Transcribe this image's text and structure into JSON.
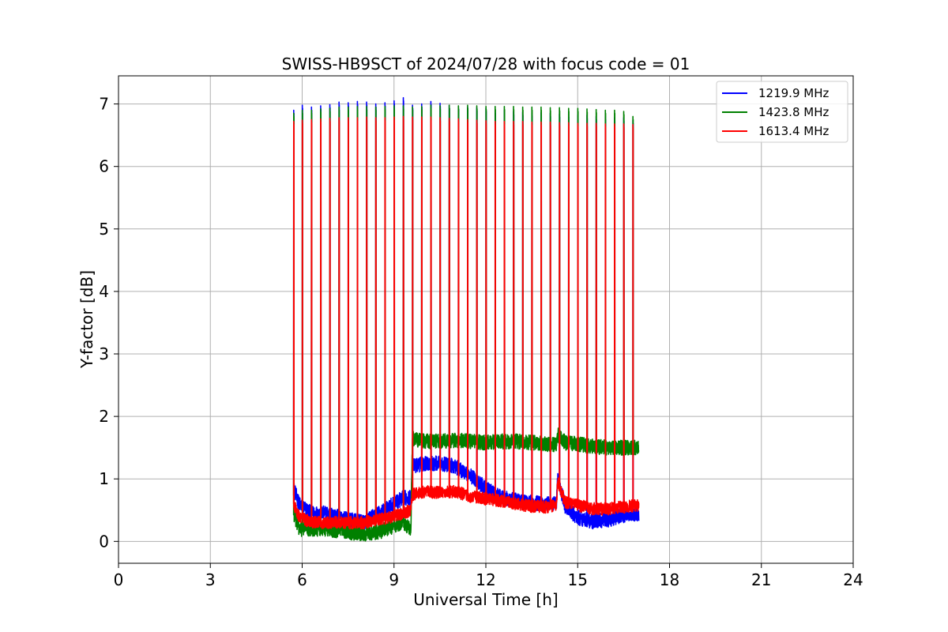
{
  "chart_data": {
    "type": "line",
    "title": "SWISS-HB9SCT of 2024/07/28 with focus code = 01",
    "xlabel": "Universal Time [h]",
    "ylabel": "Y-factor [dB]",
    "xlim": [
      0,
      24
    ],
    "ylim": [
      -0.35,
      7.45
    ],
    "xticks": [
      "0",
      "3",
      "6",
      "9",
      "12",
      "15",
      "18",
      "21",
      "24"
    ],
    "xtick_values": [
      0,
      3,
      6,
      9,
      12,
      15,
      18,
      21,
      24
    ],
    "yticks": [
      "0",
      "1",
      "2",
      "3",
      "4",
      "5",
      "6",
      "7"
    ],
    "ytick_values": [
      0,
      1,
      2,
      3,
      4,
      5,
      6,
      7
    ],
    "grid": true,
    "legend_position": "top-right",
    "calibration_spike_times": [
      5.72,
      6.0,
      6.3,
      6.6,
      6.9,
      7.2,
      7.5,
      7.8,
      8.1,
      8.4,
      8.7,
      9.0,
      9.3,
      9.6,
      9.9,
      10.2,
      10.5,
      10.8,
      11.1,
      11.4,
      11.7,
      12.0,
      12.3,
      12.6,
      12.9,
      13.2,
      13.5,
      13.8,
      14.1,
      14.4,
      14.7,
      15.0,
      15.3,
      15.6,
      15.9,
      16.2,
      16.5,
      16.8
    ],
    "series": [
      {
        "name": "1219.9 MHz",
        "color": "#0000ff",
        "baseline_x": [
          5.72,
          5.9,
          6.3,
          6.8,
          7.5,
          8.0,
          8.5,
          9.0,
          9.3,
          9.55,
          9.6,
          10.0,
          10.5,
          11.0,
          11.5,
          12.0,
          12.5,
          13.0,
          13.5,
          14.0,
          14.3,
          14.35,
          14.6,
          15.0,
          15.5,
          16.0,
          16.5,
          17.0
        ],
        "baseline_y": [
          0.85,
          0.6,
          0.45,
          0.45,
          0.35,
          0.3,
          0.45,
          0.6,
          0.7,
          0.7,
          1.2,
          1.25,
          1.25,
          1.2,
          1.05,
          0.85,
          0.7,
          0.65,
          0.62,
          0.6,
          0.6,
          1.0,
          0.55,
          0.38,
          0.32,
          0.35,
          0.42,
          0.45
        ],
        "noise": 0.12,
        "spike_peaks": [
          6.9,
          6.98,
          6.95,
          6.97,
          6.99,
          7.03,
          7.02,
          7.04,
          7.03,
          7.0,
          7.02,
          7.05,
          7.1,
          6.98,
          7.0,
          7.04,
          7.01,
          6.98,
          6.96,
          6.95,
          6.94,
          6.93,
          6.9,
          6.9,
          6.88,
          6.87,
          6.86,
          6.86,
          6.85,
          6.84,
          6.84,
          6.82,
          6.82,
          6.8,
          6.8,
          6.78,
          6.78,
          6.74
        ]
      },
      {
        "name": "1423.8 MHz",
        "color": "#008000",
        "baseline_x": [
          5.72,
          5.9,
          6.3,
          6.8,
          7.5,
          8.0,
          8.5,
          9.0,
          9.3,
          9.55,
          9.6,
          10.0,
          10.5,
          11.0,
          11.5,
          12.0,
          12.5,
          13.0,
          13.5,
          14.0,
          14.3,
          14.35,
          14.6,
          15.0,
          15.5,
          16.0,
          16.5,
          17.0
        ],
        "baseline_y": [
          0.45,
          0.2,
          0.2,
          0.2,
          0.15,
          0.12,
          0.15,
          0.25,
          0.3,
          0.2,
          1.65,
          1.6,
          1.6,
          1.62,
          1.6,
          1.58,
          1.6,
          1.6,
          1.58,
          1.56,
          1.55,
          1.7,
          1.58,
          1.56,
          1.52,
          1.5,
          1.5,
          1.5
        ],
        "noise": 0.12,
        "spike_peaks": [
          6.85,
          6.9,
          6.9,
          6.92,
          6.93,
          6.95,
          6.95,
          6.96,
          6.96,
          6.95,
          6.96,
          6.97,
          6.97,
          6.95,
          6.96,
          6.98,
          6.97,
          6.98,
          6.97,
          6.98,
          6.97,
          6.96,
          6.96,
          6.96,
          6.96,
          6.95,
          6.95,
          6.95,
          6.94,
          6.94,
          6.93,
          6.93,
          6.92,
          6.91,
          6.9,
          6.9,
          6.88,
          6.8
        ]
      },
      {
        "name": "1613.4 MHz",
        "color": "#ff0000",
        "baseline_x": [
          5.72,
          5.9,
          6.3,
          6.8,
          7.5,
          8.0,
          8.5,
          9.0,
          9.3,
          9.55,
          9.6,
          10.0,
          10.5,
          11.0,
          11.5,
          12.0,
          12.5,
          13.0,
          13.5,
          14.0,
          14.3,
          14.35,
          14.6,
          15.0,
          15.5,
          16.0,
          16.5,
          17.0
        ],
        "baseline_y": [
          0.6,
          0.4,
          0.3,
          0.3,
          0.3,
          0.3,
          0.35,
          0.4,
          0.45,
          0.5,
          0.75,
          0.8,
          0.78,
          0.8,
          0.72,
          0.68,
          0.65,
          0.6,
          0.56,
          0.55,
          0.58,
          0.95,
          0.62,
          0.58,
          0.52,
          0.52,
          0.55,
          0.58
        ],
        "noise": 0.1,
        "spike_peaks": [
          6.72,
          6.74,
          6.75,
          6.76,
          6.77,
          6.78,
          6.78,
          6.78,
          6.79,
          6.78,
          6.78,
          6.79,
          6.8,
          6.79,
          6.79,
          6.79,
          6.78,
          6.77,
          6.76,
          6.75,
          6.74,
          6.73,
          6.72,
          6.72,
          6.72,
          6.72,
          6.71,
          6.71,
          6.71,
          6.7,
          6.7,
          6.69,
          6.69,
          6.69,
          6.68,
          6.68,
          6.68,
          6.67
        ]
      }
    ]
  }
}
